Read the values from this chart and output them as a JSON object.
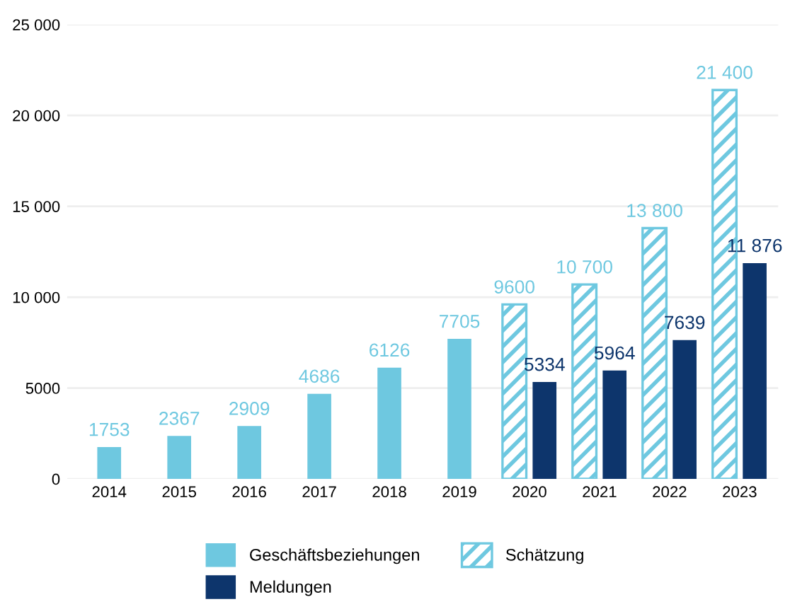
{
  "chart_data": {
    "type": "bar",
    "categories": [
      "2014",
      "2015",
      "2016",
      "2017",
      "2018",
      "2019",
      "2020",
      "2021",
      "2022",
      "2023"
    ],
    "series": [
      {
        "name": "Geschäftsbeziehungen",
        "color": "#6ec8e0",
        "values": [
          1753,
          2367,
          2909,
          4686,
          6126,
          7705,
          null,
          null,
          null,
          null
        ],
        "value_labels": [
          "1753",
          "2367",
          "2909",
          "4686",
          "6126",
          "7705",
          null,
          null,
          null,
          null
        ]
      },
      {
        "name": "Schätzung",
        "color": "#6ec8e0",
        "values": [
          null,
          null,
          null,
          null,
          null,
          null,
          9600,
          10700,
          13800,
          21400
        ],
        "value_labels": [
          null,
          null,
          null,
          null,
          null,
          null,
          "9600",
          "10 700",
          "13 800",
          "21 400"
        ]
      },
      {
        "name": "Meldungen",
        "color": "#0d356c",
        "values": [
          null,
          null,
          null,
          null,
          null,
          null,
          5334,
          5964,
          7639,
          11876
        ],
        "value_labels": [
          null,
          null,
          null,
          null,
          null,
          null,
          "5334",
          "5964",
          "7639",
          "11 876"
        ]
      }
    ],
    "ylim": [
      0,
      25000
    ],
    "yticks": [
      0,
      5000,
      {
        "value": 10000,
        "label": "10 000"
      },
      {
        "value": 15000,
        "label": "15 000"
      },
      {
        "value": 20000,
        "label": "20 000"
      },
      {
        "value": 25000,
        "label": "25 000"
      }
    ],
    "grid": "y",
    "legend": "bottom"
  }
}
